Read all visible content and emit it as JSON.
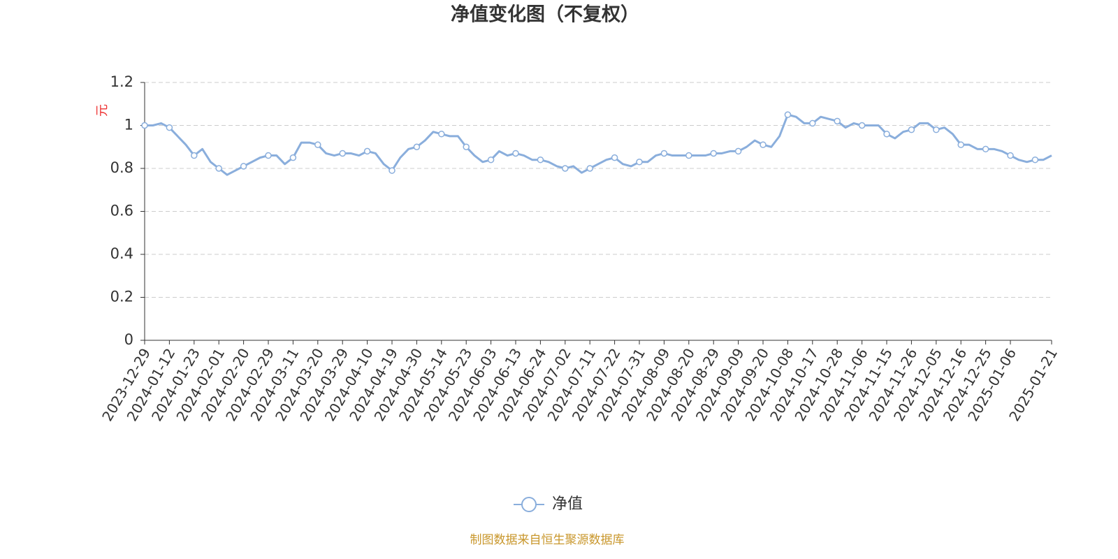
{
  "chart_data": {
    "type": "line",
    "title": "净值变化图（不复权）",
    "y_label": "元",
    "source": "制图数据来自恒生聚源数据库",
    "categories": [
      "2023-12-29",
      null,
      null,
      "2024-01-12",
      null,
      null,
      "2024-01-23",
      null,
      null,
      "2024-02-01",
      null,
      null,
      "2024-02-20",
      null,
      null,
      "2024-02-29",
      null,
      null,
      "2024-03-11",
      null,
      null,
      "2024-03-20",
      null,
      null,
      "2024-03-29",
      null,
      null,
      "2024-04-10",
      null,
      null,
      "2024-04-19",
      null,
      null,
      "2024-04-30",
      null,
      null,
      "2024-05-14",
      null,
      null,
      "2024-05-23",
      null,
      null,
      "2024-06-03",
      null,
      null,
      "2024-06-13",
      null,
      null,
      "2024-06-24",
      null,
      null,
      "2024-07-02",
      null,
      null,
      "2024-07-11",
      null,
      null,
      "2024-07-22",
      null,
      null,
      "2024-07-31",
      null,
      null,
      "2024-08-09",
      null,
      null,
      "2024-08-20",
      null,
      null,
      "2024-08-29",
      null,
      null,
      "2024-09-09",
      null,
      null,
      "2024-09-20",
      null,
      null,
      "2024-10-08",
      null,
      null,
      "2024-10-17",
      null,
      null,
      "2024-10-28",
      null,
      null,
      "2024-11-06",
      null,
      null,
      "2024-11-15",
      null,
      null,
      "2024-11-26",
      null,
      null,
      "2024-12-05",
      null,
      null,
      "2024-12-16",
      null,
      null,
      "2024-12-25",
      null,
      null,
      "2025-01-06",
      null,
      null,
      null,
      null,
      "2025-01-21"
    ],
    "series": [
      {
        "name": "净值",
        "color": "#8aaedc",
        "values": [
          1.0,
          1.0,
          1.01,
          0.99,
          0.95,
          0.91,
          0.86,
          0.89,
          0.83,
          0.8,
          0.77,
          0.79,
          0.81,
          0.83,
          0.85,
          0.86,
          0.86,
          0.82,
          0.85,
          0.92,
          0.92,
          0.91,
          0.87,
          0.86,
          0.87,
          0.87,
          0.86,
          0.88,
          0.87,
          0.82,
          0.79,
          0.85,
          0.89,
          0.9,
          0.93,
          0.97,
          0.96,
          0.95,
          0.95,
          0.9,
          0.86,
          0.83,
          0.84,
          0.88,
          0.86,
          0.87,
          0.86,
          0.84,
          0.84,
          0.83,
          0.81,
          0.8,
          0.81,
          0.78,
          0.8,
          0.82,
          0.84,
          0.85,
          0.82,
          0.81,
          0.83,
          0.83,
          0.86,
          0.87,
          0.86,
          0.86,
          0.86,
          0.86,
          0.86,
          0.87,
          0.87,
          0.88,
          0.88,
          0.9,
          0.93,
          0.91,
          0.9,
          0.95,
          1.05,
          1.04,
          1.01,
          1.01,
          1.04,
          1.03,
          1.02,
          0.99,
          1.01,
          1.0,
          1.0,
          1.0,
          0.96,
          0.94,
          0.97,
          0.98,
          1.01,
          1.01,
          0.98,
          0.99,
          0.96,
          0.91,
          0.91,
          0.89,
          0.89,
          0.89,
          0.88,
          0.86,
          0.84,
          0.83,
          0.84,
          0.84,
          0.86
        ]
      }
    ],
    "ylim": [
      0,
      1.2
    ],
    "yticks": [
      0,
      0.2,
      0.4,
      0.6,
      0.8,
      1,
      1.2
    ],
    "grid": true
  }
}
